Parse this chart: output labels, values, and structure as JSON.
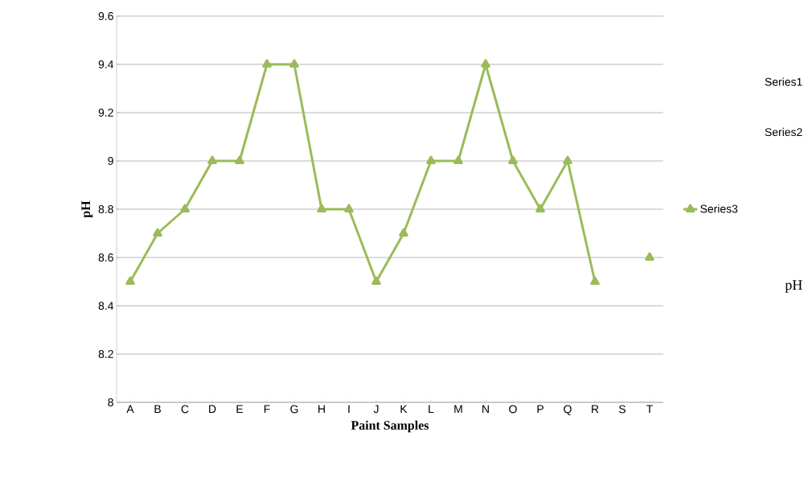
{
  "chart_data": {
    "type": "line",
    "xlabel": "Paint Samples",
    "ylabel": "pH",
    "categories": [
      "A",
      "B",
      "C",
      "D",
      "E",
      "F",
      "G",
      "H",
      "I",
      "J",
      "K",
      "L",
      "M",
      "N",
      "O",
      "P",
      "Q",
      "R",
      "S",
      "T"
    ],
    "series": [
      {
        "name": "Series3",
        "color": "#9bbb59",
        "values": [
          8.5,
          8.7,
          8.8,
          9.0,
          9.0,
          9.4,
          9.4,
          8.8,
          8.8,
          8.5,
          8.7,
          9.0,
          9.0,
          9.4,
          9.0,
          8.8,
          9.0,
          8.5,
          null,
          8.6
        ]
      }
    ],
    "ylim": [
      8,
      9.6
    ],
    "yticks": [
      8,
      8.2,
      8.4,
      8.6,
      8.8,
      9,
      9.2,
      9.4,
      9.6
    ],
    "grid": "y",
    "legend": "right",
    "marker": "triangle",
    "line_style": "solid",
    "annotations": [
      "Series1",
      "Series2",
      "pH"
    ]
  }
}
